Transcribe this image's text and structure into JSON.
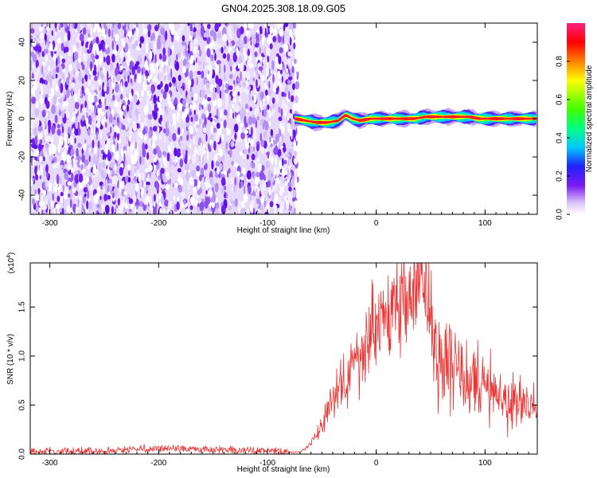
{
  "title": "GN04.2025.308.18.09.G05",
  "chart_data": [
    {
      "type": "heatmap",
      "xlabel": "Height of straight line (km)",
      "ylabel": "Frequency (Hz)",
      "xlim": [
        -318,
        148
      ],
      "ylim": [
        -50,
        50
      ],
      "xticks": [
        -300,
        -200,
        -100,
        0,
        100
      ],
      "yticks": [
        -40,
        -20,
        0,
        20,
        40
      ],
      "noise_region": {
        "x": [
          -318,
          -75
        ],
        "y": [
          -50,
          50
        ]
      },
      "ridge": {
        "x": [
          -75,
          -65,
          -55,
          -45,
          -35,
          -28,
          -22,
          -15,
          -5,
          5,
          20,
          35,
          45,
          60,
          75,
          85,
          95,
          110,
          125,
          148
        ],
        "freq": [
          0,
          -1,
          -2,
          -2,
          -1,
          2,
          0,
          -1,
          0,
          0,
          0,
          0,
          1,
          1,
          1,
          1,
          0,
          0,
          0,
          0
        ]
      },
      "colorbar": {
        "label": "Normalized spectral amplitude",
        "range": [
          0,
          1
        ],
        "ticks": [
          "0.0",
          "0.2",
          "0.4",
          "0.6",
          "0.8"
        ],
        "colors": [
          "#ffffff",
          "#c9a5f5",
          "#7a1bf0",
          "#2020ff",
          "#00c8ff",
          "#00ff80",
          "#40ff00",
          "#ffff00",
          "#ff8000",
          "#ff0000",
          "#ff2080"
        ]
      }
    },
    {
      "type": "line",
      "xlabel": "Height of straight line (km)",
      "ylabel": "SNR (10 * v/v)",
      "y_multiplier": "(x10",
      "y_multiplier_exp": "4",
      "y_multiplier_close": ")",
      "xlim": [
        -318,
        148
      ],
      "ylim": [
        0,
        1.95
      ],
      "xticks": [
        -300,
        -200,
        -100,
        0,
        100
      ],
      "yticks": [
        "0.0",
        "0.5",
        "1.0",
        "1.5"
      ],
      "color": "#ee3333",
      "envelope": {
        "x": [
          -318,
          -240,
          -220,
          -200,
          -160,
          -140,
          -100,
          -80,
          -70,
          -60,
          -50,
          -45,
          -40,
          -30,
          -20,
          -10,
          0,
          10,
          20,
          30,
          40,
          45,
          50,
          60,
          80,
          100,
          120,
          148
        ],
        "y": [
          0.02,
          0.03,
          0.05,
          0.06,
          0.05,
          0.04,
          0.03,
          0.02,
          0.02,
          0.1,
          0.3,
          0.45,
          0.55,
          0.75,
          0.9,
          1.1,
          1.25,
          1.4,
          1.55,
          1.65,
          1.75,
          1.72,
          1.2,
          1.0,
          0.8,
          0.65,
          0.55,
          0.45
        ]
      }
    }
  ]
}
